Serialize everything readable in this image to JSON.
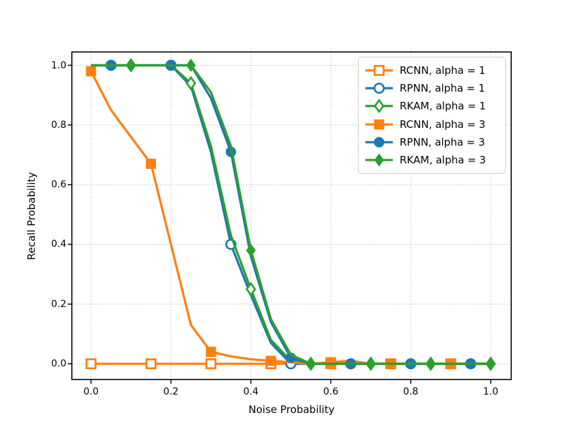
{
  "chart_data": {
    "type": "line",
    "title": "",
    "xlabel": "Noise Probability",
    "ylabel": "Recall Probability",
    "xticks": [
      0.0,
      0.2,
      0.4,
      0.6,
      0.8,
      1.0
    ],
    "yticks": [
      0.0,
      0.2,
      0.4,
      0.6,
      0.8,
      1.0
    ],
    "xlim": [
      -0.05,
      1.05
    ],
    "ylim": [
      -0.055,
      1.045
    ],
    "grid": "dotted",
    "legend_position": "upper right",
    "x": [
      0.0,
      0.05,
      0.1,
      0.15,
      0.2,
      0.25,
      0.3,
      0.35,
      0.4,
      0.45,
      0.5,
      0.55,
      0.6,
      0.65,
      0.7,
      0.75,
      0.8,
      0.85,
      0.9,
      0.95,
      1.0
    ],
    "series": [
      {
        "name": "RCNN, alpha = 1",
        "color": "#ff7f0e",
        "marker": "square",
        "filled": false,
        "marker_every": 3,
        "marker_offset": 0,
        "values": [
          0.0,
          0.0,
          0.0,
          0.0,
          0.0,
          0.0,
          0.0,
          0.0,
          0.0,
          0.0,
          0.0,
          0.0,
          0.0,
          0.0,
          0.0,
          0.0,
          0.0,
          0.0,
          0.0,
          0.0,
          0.0
        ]
      },
      {
        "name": "RPNN, alpha = 1",
        "color": "#1f77b4",
        "marker": "circle",
        "filled": false,
        "marker_every": 3,
        "marker_offset": 1,
        "values": [
          1.0,
          1.0,
          1.0,
          1.0,
          1.0,
          0.93,
          0.71,
          0.4,
          0.23,
          0.07,
          0.0,
          0.0,
          0.0,
          0.0,
          0.0,
          0.0,
          0.0,
          0.0,
          0.0,
          0.0,
          0.0
        ]
      },
      {
        "name": "RKAM, alpha = 1",
        "color": "#2ca02c",
        "marker": "diamond",
        "filled": false,
        "marker_every": 3,
        "marker_offset": 2,
        "values": [
          1.0,
          1.0,
          1.0,
          1.0,
          1.0,
          0.94,
          0.73,
          0.43,
          0.25,
          0.08,
          0.01,
          0.0,
          0.0,
          0.0,
          0.0,
          0.0,
          0.0,
          0.0,
          0.0,
          0.0,
          0.0
        ]
      },
      {
        "name": "RCNN, alpha = 3",
        "color": "#ff7f0e",
        "marker": "square",
        "filled": true,
        "marker_every": 3,
        "marker_offset": 0,
        "values": [
          0.98,
          0.85,
          0.76,
          0.67,
          0.4,
          0.13,
          0.04,
          0.025,
          0.015,
          0.01,
          0.005,
          0.0,
          0.005,
          0.01,
          0.0,
          0.0,
          0.0,
          0.0,
          0.0,
          0.0,
          0.0
        ]
      },
      {
        "name": "RPNN, alpha = 3",
        "color": "#1f77b4",
        "marker": "circle",
        "filled": true,
        "marker_every": 3,
        "marker_offset": 1,
        "values": [
          1.0,
          1.0,
          1.0,
          1.0,
          1.0,
          1.0,
          0.89,
          0.71,
          0.36,
          0.14,
          0.02,
          0.0,
          0.0,
          0.0,
          0.0,
          0.0,
          0.0,
          0.0,
          0.0,
          0.0,
          0.0
        ]
      },
      {
        "name": "RKAM, alpha = 3",
        "color": "#2ca02c",
        "marker": "diamond",
        "filled": true,
        "marker_every": 3,
        "marker_offset": 2,
        "values": [
          1.0,
          1.0,
          1.0,
          1.0,
          1.0,
          1.0,
          0.91,
          0.73,
          0.38,
          0.15,
          0.03,
          0.0,
          0.0,
          0.0,
          0.0,
          0.0,
          0.0,
          0.0,
          0.0,
          0.0,
          0.0
        ]
      }
    ]
  },
  "style_colors": {
    "grid": "#b0b0b0",
    "spine": "#000000",
    "text": "#000000",
    "legend_border": "#cccccc",
    "background": "#ffffff"
  }
}
